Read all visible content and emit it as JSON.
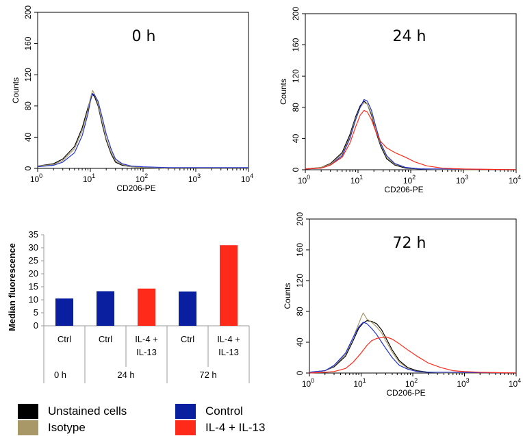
{
  "chart_data": [
    {
      "type": "line",
      "panel": "top-left",
      "title": "0 h",
      "xlabel": "CD206-PE",
      "ylabel": "Counts",
      "xscale": "log",
      "xlim": [
        1,
        10000
      ],
      "ylim": [
        0,
        200
      ],
      "xticks": [
        "0",
        "1",
        "2",
        "3",
        "4"
      ],
      "yticks": [
        "0",
        "40",
        "80",
        "120",
        "160",
        "200"
      ],
      "series": [
        {
          "color": "#000000",
          "x": [
            1,
            2,
            3,
            5,
            7,
            9,
            10,
            11,
            12,
            14,
            17,
            20,
            25,
            30,
            40,
            60,
            100,
            300,
            1000,
            10000
          ],
          "y": [
            3,
            6,
            12,
            28,
            52,
            78,
            88,
            95,
            92,
            80,
            55,
            36,
            18,
            8,
            4,
            2,
            1,
            0,
            0,
            0
          ]
        },
        {
          "color": "#a89868",
          "x": [
            1,
            2,
            3,
            5,
            7,
            9,
            10,
            11,
            12,
            14,
            17,
            20,
            25,
            30,
            40,
            60,
            100,
            300,
            1000,
            10000
          ],
          "y": [
            3,
            5,
            10,
            25,
            48,
            75,
            90,
            100,
            95,
            82,
            58,
            38,
            20,
            10,
            5,
            2,
            1,
            0,
            0,
            0
          ]
        },
        {
          "color": "#2233cc",
          "x": [
            1,
            2,
            3,
            5,
            7,
            9,
            10,
            11,
            12,
            14,
            17,
            20,
            25,
            30,
            40,
            60,
            100,
            300,
            1000,
            10000
          ],
          "y": [
            2,
            4,
            8,
            20,
            42,
            70,
            86,
            96,
            94,
            86,
            64,
            44,
            24,
            12,
            6,
            3,
            2,
            1,
            1,
            1
          ]
        }
      ]
    },
    {
      "type": "line",
      "panel": "top-right",
      "title": "24 h",
      "xlabel": "CD206-PE",
      "ylabel": "Counts",
      "xscale": "log",
      "xlim": [
        1,
        10000
      ],
      "ylim": [
        0,
        200
      ],
      "xticks": [
        "0",
        "1",
        "2",
        "3",
        "4"
      ],
      "yticks": [
        "0",
        "40",
        "80",
        "120",
        "160",
        "200"
      ],
      "series": [
        {
          "color": "#000000",
          "x": [
            1,
            2,
            3,
            5,
            7,
            9,
            11,
            13,
            15,
            18,
            22,
            27,
            35,
            50,
            80,
            150,
            500,
            10000
          ],
          "y": [
            1,
            3,
            8,
            22,
            45,
            68,
            82,
            88,
            84,
            70,
            48,
            30,
            14,
            6,
            2,
            1,
            0,
            0
          ]
        },
        {
          "color": "#a89868",
          "x": [
            1,
            2,
            3,
            5,
            7,
            9,
            11,
            13,
            15,
            18,
            22,
            27,
            35,
            50,
            80,
            150,
            500,
            10000
          ],
          "y": [
            1,
            3,
            7,
            20,
            42,
            66,
            80,
            86,
            84,
            72,
            50,
            32,
            16,
            7,
            3,
            1,
            0,
            0
          ]
        },
        {
          "color": "#2233cc",
          "x": [
            1,
            2,
            3,
            5,
            7,
            9,
            11,
            13,
            15,
            18,
            22,
            27,
            35,
            50,
            80,
            150,
            500,
            10000
          ],
          "y": [
            1,
            2,
            6,
            18,
            40,
            64,
            80,
            90,
            88,
            76,
            54,
            34,
            18,
            8,
            3,
            1,
            1,
            0
          ]
        },
        {
          "color": "#ff2a1a",
          "x": [
            1,
            2,
            3,
            5,
            7,
            9,
            11,
            13,
            15,
            18,
            22,
            27,
            35,
            50,
            80,
            120,
            200,
            400,
            1000,
            10000
          ],
          "y": [
            1,
            2,
            6,
            16,
            34,
            55,
            70,
            76,
            74,
            64,
            48,
            36,
            28,
            22,
            16,
            10,
            5,
            2,
            1,
            0
          ]
        }
      ]
    },
    {
      "type": "bar",
      "panel": "bottom-left",
      "ylabel": "Median fluorescence",
      "ylim": [
        0,
        35
      ],
      "yticks": [
        "0",
        "5",
        "10",
        "15",
        "20",
        "25",
        "30",
        "35"
      ],
      "categories": [
        "Ctrl",
        "Ctrl",
        "IL-4 + IL-13",
        "Ctrl",
        "IL-4 + IL-13"
      ],
      "groups": [
        {
          "label": "0 h",
          "categories": [
            "Ctrl"
          ]
        },
        {
          "label": "24 h",
          "categories": [
            "Ctrl",
            "IL-4 + IL-13"
          ]
        },
        {
          "label": "72 h",
          "categories": [
            "Ctrl",
            "IL-4 + IL-13"
          ]
        }
      ],
      "values": [
        10.5,
        13.3,
        14.3,
        13.2,
        31
      ],
      "colors": [
        "#0a1fa0",
        "#0a1fa0",
        "#ff2a1a",
        "#0a1fa0",
        "#ff2a1a"
      ]
    },
    {
      "type": "line",
      "panel": "bottom-right",
      "title": "72 h",
      "xlabel": "CD206-PE",
      "ylabel": "Counts",
      "xscale": "log",
      "xlim": [
        1,
        10000
      ],
      "ylim": [
        0,
        200
      ],
      "xticks": [
        "0",
        "1",
        "2",
        "3",
        "4"
      ],
      "yticks": [
        "0",
        "40",
        "80",
        "120",
        "160",
        "200"
      ],
      "series": [
        {
          "color": "#000000",
          "x": [
            1,
            2,
            3,
            5,
            7,
            9,
            11,
            13,
            16,
            20,
            25,
            30,
            40,
            55,
            80,
            120,
            200,
            500,
            10000
          ],
          "y": [
            1,
            3,
            8,
            22,
            42,
            58,
            65,
            68,
            67,
            64,
            56,
            46,
            30,
            16,
            7,
            3,
            1,
            0,
            0
          ]
        },
        {
          "color": "#a89868",
          "x": [
            1,
            2,
            3,
            5,
            7,
            9,
            10,
            11,
            13,
            16,
            20,
            25,
            30,
            40,
            55,
            80,
            120,
            200,
            500,
            10000
          ],
          "y": [
            1,
            3,
            9,
            24,
            46,
            64,
            72,
            78,
            70,
            66,
            60,
            52,
            42,
            27,
            14,
            6,
            2,
            1,
            0,
            0
          ]
        },
        {
          "color": "#2233cc",
          "x": [
            1,
            2,
            3,
            5,
            7,
            9,
            11,
            13,
            16,
            20,
            25,
            30,
            40,
            55,
            80,
            120,
            200,
            500,
            10000
          ],
          "y": [
            1,
            3,
            10,
            26,
            46,
            60,
            66,
            64,
            58,
            50,
            40,
            32,
            20,
            10,
            5,
            2,
            1,
            1,
            0
          ]
        },
        {
          "color": "#ff2a1a",
          "x": [
            1,
            2,
            3,
            5,
            7,
            10,
            13,
            16,
            20,
            25,
            30,
            40,
            55,
            80,
            120,
            200,
            350,
            600,
            1000,
            2000,
            10000
          ],
          "y": [
            0,
            1,
            2,
            6,
            14,
            26,
            36,
            42,
            45,
            46,
            47,
            44,
            38,
            30,
            22,
            13,
            7,
            3,
            2,
            1,
            0
          ]
        }
      ]
    }
  ],
  "legend": [
    {
      "label": "Unstained cells",
      "color": "#000000"
    },
    {
      "label": "Isotype",
      "color": "#a89868"
    },
    {
      "label": "Control",
      "color": "#0a1fa0"
    },
    {
      "label": "IL-4 + IL-13",
      "color": "#ff2a1a"
    }
  ]
}
